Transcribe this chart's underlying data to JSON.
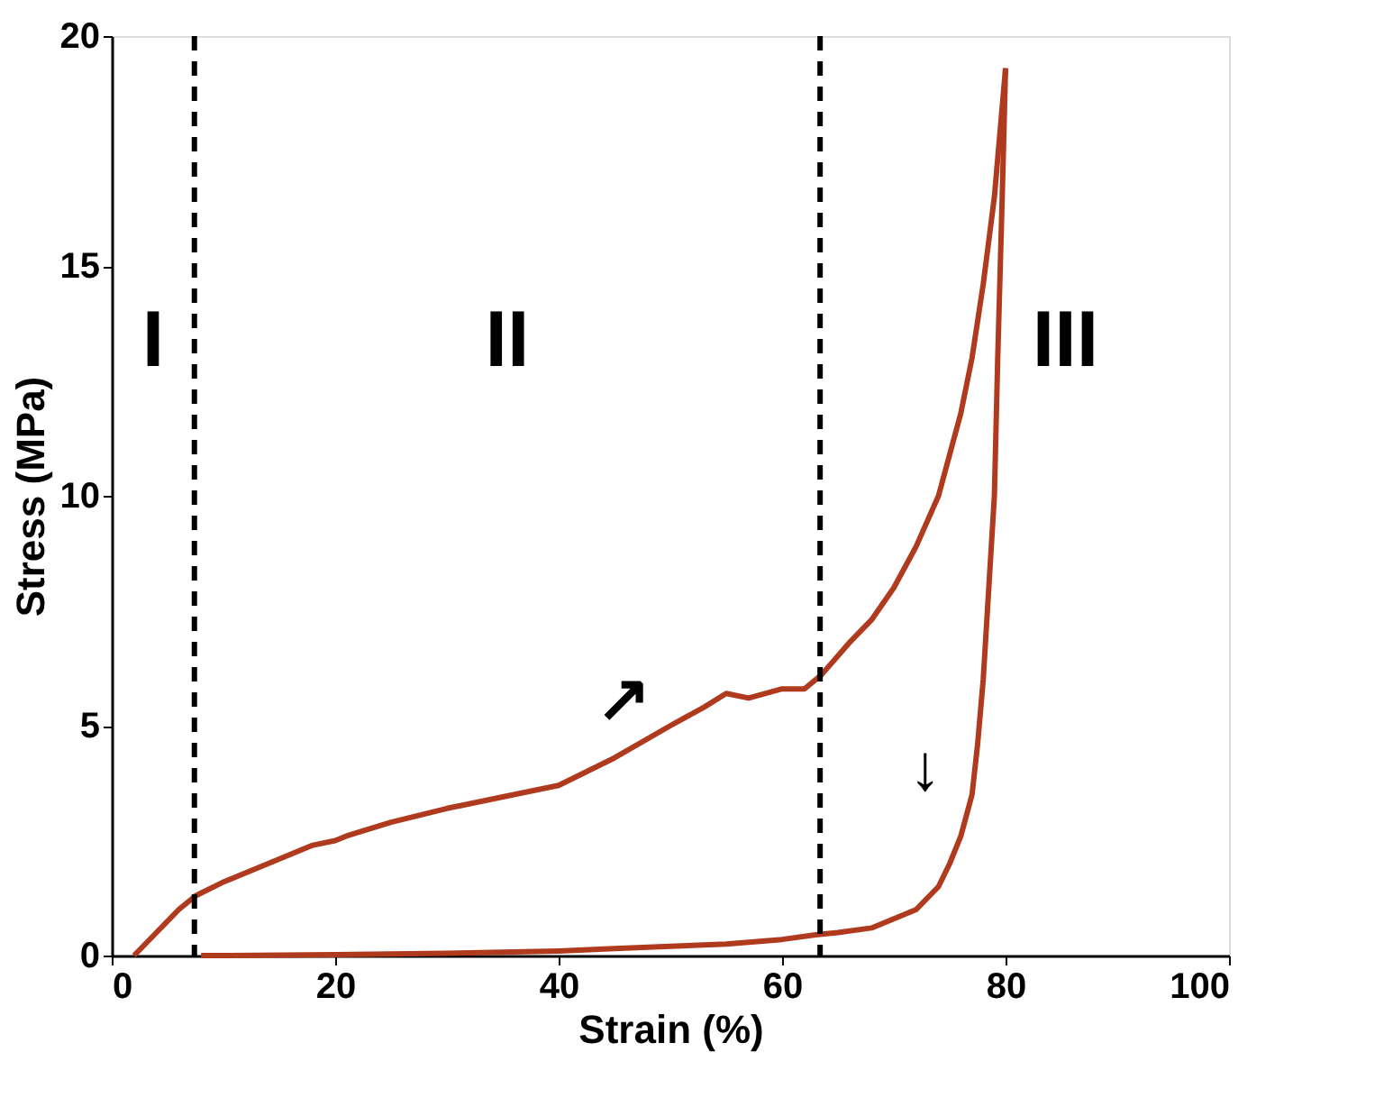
{
  "chart_data": {
    "type": "line",
    "xlabel": "Strain (%)",
    "ylabel": "Stress (MPa)",
    "series": [
      {
        "color": "#b03a1e",
        "x": [
          2,
          4,
          6,
          7.5,
          10,
          14,
          18,
          20,
          21,
          25,
          30,
          35,
          40,
          45,
          50,
          53,
          55,
          57,
          60,
          62,
          63.5,
          66,
          68,
          70,
          72,
          74,
          76,
          77,
          78,
          79,
          80
        ],
        "values": [
          0,
          0.5,
          1.0,
          1.3,
          1.6,
          2.0,
          2.4,
          2.5,
          2.6,
          2.9,
          3.2,
          3.45,
          3.7,
          4.3,
          5.0,
          5.4,
          5.7,
          5.6,
          5.8,
          5.8,
          6.1,
          6.8,
          7.3,
          8.0,
          8.9,
          10.0,
          11.8,
          13.0,
          14.6,
          16.5,
          19.3
        ]
      },
      {
        "color": "#b03a1e",
        "x": [
          80,
          79.7,
          79.3,
          79,
          78.5,
          78,
          77.5,
          77,
          76,
          75,
          74,
          72,
          70,
          68,
          65,
          63,
          60,
          55,
          50,
          45,
          40,
          30,
          20,
          10,
          8
        ],
        "values": [
          19.3,
          16.5,
          13,
          10,
          8,
          6,
          4.6,
          3.5,
          2.6,
          2.0,
          1.5,
          1.0,
          0.8,
          0.6,
          0.5,
          0.45,
          0.35,
          0.25,
          0.2,
          0.15,
          0.1,
          0.05,
          0.02,
          0,
          0
        ]
      }
    ],
    "xlim": [
      0,
      100
    ],
    "xticks": [
      0,
      20,
      40,
      60,
      80,
      100
    ],
    "ylim": [
      0,
      20
    ],
    "yticks": [
      0,
      5,
      10,
      15,
      20
    ],
    "ref_lines": [
      {
        "axis": "x",
        "value": 7.4,
        "color": "#000000",
        "line_style": "dashed"
      },
      {
        "axis": "x",
        "value": 63.4,
        "color": "#000000",
        "line_style": "dashed"
      }
    ],
    "annotations": [
      "I",
      "II",
      "III",
      {
        "text": "↗",
        "x": 50,
        "y": 5.0
      },
      {
        "text": "↓",
        "x": 77,
        "y": 3.5
      }
    ],
    "grid": false,
    "legend": false,
    "marker": "none",
    "line_style": "solid"
  }
}
